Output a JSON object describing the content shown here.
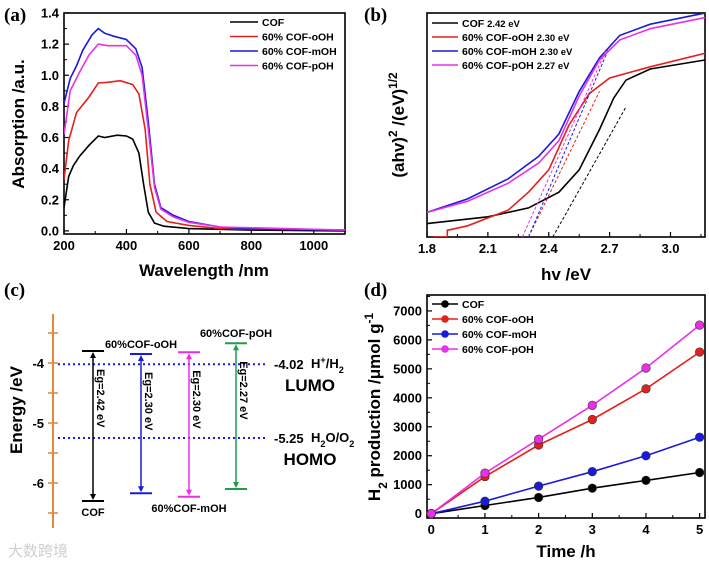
{
  "watermark": "大数跨境",
  "chart_data": [
    {
      "panel": "(a)",
      "type": "line",
      "xlabel": "Wavelength /nm",
      "ylabel": "Absorption /a.u.",
      "xlim": [
        200,
        1100
      ],
      "ylim": [
        -0.02,
        1.4
      ],
      "xticks": [
        "200",
        "400",
        "600",
        "800",
        "1000"
      ],
      "yticks": [
        "0.0",
        "0.2",
        "0.4",
        "0.6",
        "0.8",
        "1.0",
        "1.2",
        "1.4"
      ],
      "legend_position": "top-right",
      "series": [
        {
          "name": "COF",
          "color": "#000000",
          "points": [
            [
              200,
              0.15
            ],
            [
              215,
              0.35
            ],
            [
              230,
              0.42
            ],
            [
              250,
              0.48
            ],
            [
              280,
              0.55
            ],
            [
              310,
              0.61
            ],
            [
              330,
              0.6
            ],
            [
              370,
              0.615
            ],
            [
              400,
              0.61
            ],
            [
              420,
              0.59
            ],
            [
              440,
              0.5
            ],
            [
              455,
              0.3
            ],
            [
              470,
              0.12
            ],
            [
              490,
              0.05
            ],
            [
              520,
              0.03
            ],
            [
              600,
              0.015
            ],
            [
              800,
              0.005
            ],
            [
              1100,
              0.0
            ]
          ]
        },
        {
          "name": "60% COF-oOH",
          "color": "#e3201c",
          "points": [
            [
              200,
              0.33
            ],
            [
              215,
              0.58
            ],
            [
              240,
              0.76
            ],
            [
              280,
              0.86
            ],
            [
              310,
              0.95
            ],
            [
              340,
              0.955
            ],
            [
              380,
              0.965
            ],
            [
              420,
              0.94
            ],
            [
              440,
              0.88
            ],
            [
              460,
              0.65
            ],
            [
              475,
              0.3
            ],
            [
              495,
              0.12
            ],
            [
              530,
              0.06
            ],
            [
              600,
              0.035
            ],
            [
              700,
              0.015
            ],
            [
              1100,
              0.005
            ]
          ]
        },
        {
          "name": "60% COF-mOH",
          "color": "#1a1adb",
          "points": [
            [
              200,
              0.82
            ],
            [
              220,
              0.98
            ],
            [
              240,
              1.06
            ],
            [
              260,
              1.16
            ],
            [
              290,
              1.26
            ],
            [
              310,
              1.3
            ],
            [
              330,
              1.27
            ],
            [
              360,
              1.25
            ],
            [
              400,
              1.23
            ],
            [
              430,
              1.17
            ],
            [
              450,
              1.05
            ],
            [
              470,
              0.7
            ],
            [
              490,
              0.3
            ],
            [
              510,
              0.15
            ],
            [
              550,
              0.1
            ],
            [
              600,
              0.06
            ],
            [
              700,
              0.025
            ],
            [
              800,
              0.012
            ],
            [
              1100,
              0.005
            ]
          ]
        },
        {
          "name": "60% COF-pOH",
          "color": "#e830e8",
          "points": [
            [
              200,
              0.62
            ],
            [
              220,
              0.9
            ],
            [
              250,
              1.02
            ],
            [
              280,
              1.13
            ],
            [
              310,
              1.2
            ],
            [
              340,
              1.19
            ],
            [
              400,
              1.19
            ],
            [
              430,
              1.13
            ],
            [
              450,
              1.0
            ],
            [
              470,
              0.65
            ],
            [
              490,
              0.28
            ],
            [
              510,
              0.14
            ],
            [
              550,
              0.09
            ],
            [
              600,
              0.055
            ],
            [
              700,
              0.025
            ],
            [
              1100,
              0.005
            ]
          ]
        }
      ]
    },
    {
      "panel": "(b)",
      "type": "line",
      "xlabel": "hv /eV",
      "ylabel_parts": [
        "(ahv)",
        "2",
        " /(eV)",
        "1/2"
      ],
      "xlim": [
        1.8,
        3.17
      ],
      "ylim": [
        0,
        100
      ],
      "xticks": [
        "1.8",
        "2.1",
        "2.4",
        "2.7",
        "3.0"
      ],
      "legend_position": "top-left",
      "series": [
        {
          "name": "COF",
          "eg": "2.42 eV",
          "color": "#000000",
          "points": [
            [
              1.8,
              6
            ],
            [
              2.1,
              9
            ],
            [
              2.3,
              13
            ],
            [
              2.45,
              20
            ],
            [
              2.55,
              30
            ],
            [
              2.65,
              48
            ],
            [
              2.72,
              62
            ],
            [
              2.78,
              70
            ],
            [
              2.9,
              75
            ],
            [
              3.17,
              79
            ]
          ],
          "tangent": [
            [
              2.42,
              0
            ],
            [
              2.78,
              58
            ]
          ]
        },
        {
          "name": "60% COF-oOH",
          "eg": "2.30 eV",
          "color": "#e3201c",
          "points": [
            [
              1.83,
              0
            ],
            [
              1.9,
              0
            ],
            [
              1.9,
              3
            ],
            [
              2.0,
              5
            ],
            [
              2.2,
              12
            ],
            [
              2.3,
              20
            ],
            [
              2.4,
              30
            ],
            [
              2.5,
              50
            ],
            [
              2.6,
              64
            ],
            [
              2.7,
              71
            ],
            [
              2.9,
              76
            ],
            [
              3.17,
              82
            ]
          ],
          "tangent": [
            [
              2.3,
              0
            ],
            [
              2.65,
              65
            ]
          ]
        },
        {
          "name": "60% COF-mOH",
          "eg": "2.30 eV",
          "color": "#1a1adb",
          "points": [
            [
              1.8,
              11
            ],
            [
              2.0,
              17
            ],
            [
              2.2,
              26
            ],
            [
              2.35,
              36
            ],
            [
              2.45,
              46
            ],
            [
              2.55,
              65
            ],
            [
              2.65,
              80
            ],
            [
              2.75,
              90
            ],
            [
              2.9,
              95
            ],
            [
              3.17,
              100
            ]
          ],
          "tangent": [
            [
              2.3,
              0
            ],
            [
              2.7,
              85
            ]
          ]
        },
        {
          "name": "60% COF-pOH",
          "eg": "2.27 eV",
          "color": "#e830e8",
          "points": [
            [
              1.8,
              11
            ],
            [
              2.0,
              16
            ],
            [
              2.2,
              24
            ],
            [
              2.35,
              33
            ],
            [
              2.45,
              43
            ],
            [
              2.55,
              63
            ],
            [
              2.65,
              79
            ],
            [
              2.75,
              88
            ],
            [
              2.9,
              93
            ],
            [
              3.17,
              98
            ]
          ],
          "tangent": [
            [
              2.27,
              0
            ],
            [
              2.68,
              83
            ]
          ]
        }
      ]
    },
    {
      "panel": "(c)",
      "type": "diagram",
      "ylabel": "Energy /eV",
      "ylim": [
        -3.3,
        -6.7
      ],
      "yticks": [
        "-4",
        "-5",
        "-6"
      ],
      "axis_color": "#e08a3c",
      "reference_levels": [
        {
          "value": -4.02,
          "value_label": "-4.02",
          "couple_parts": [
            "H",
            "+",
            "/H",
            "2",
            ""
          ],
          "band": "LUMO"
        },
        {
          "value": -5.25,
          "value_label": "-5.25",
          "couple_parts": [
            "H",
            "2",
            "O/O",
            "2",
            ""
          ],
          "band": "HOMO"
        }
      ],
      "band_color": "#e3201c",
      "reference_color": "#1a1adb",
      "materials": [
        {
          "name": "COF",
          "lumo": -3.8,
          "homo": -6.3,
          "eg": "Eg=2.42 eV",
          "color": "#000000",
          "name_pos": "bottom"
        },
        {
          "name": "60%COF-oOH",
          "lumo": -3.85,
          "homo": -6.17,
          "eg": "Eg=2.30 eV",
          "color": "#1a1adb",
          "name_pos": "top"
        },
        {
          "name": "60%COF-mOH",
          "lumo": -3.82,
          "homo": -6.23,
          "eg": "Eg=2.30 eV",
          "color": "#e830e8",
          "name_pos": "bottom"
        },
        {
          "name": "60%COF-pOH",
          "lumo": -3.67,
          "homo": -6.1,
          "eg": "Eg=2.27 eV",
          "color": "#1e9e4a",
          "name_pos": "top"
        }
      ]
    },
    {
      "panel": "(d)",
      "type": "line",
      "xlabel": "Time /h",
      "ylabel_parts": [
        "H",
        "2",
        " production /μmol g",
        "-1"
      ],
      "xlim": [
        -0.08,
        5.1
      ],
      "ylim": [
        -150,
        7550
      ],
      "xticks": [
        "0",
        "1",
        "2",
        "3",
        "4",
        "5"
      ],
      "yticks": [
        "0",
        "1000",
        "2000",
        "3000",
        "4000",
        "5000",
        "6000",
        "7000"
      ],
      "legend_position": "top-left",
      "x": [
        0,
        1,
        2,
        3,
        4,
        5
      ],
      "series": [
        {
          "name": "COF",
          "color": "#000000",
          "values": [
            0,
            280,
            560,
            880,
            1150,
            1420
          ]
        },
        {
          "name": "60% COF-oOH",
          "color": "#e3201c",
          "values": [
            0,
            1280,
            2370,
            3250,
            4310,
            5580
          ]
        },
        {
          "name": "60% COF-mOH",
          "color": "#1a1adb",
          "values": [
            0,
            430,
            950,
            1450,
            2000,
            2640
          ]
        },
        {
          "name": "60% COF-pOH",
          "color": "#e830e8",
          "values": [
            0,
            1400,
            2570,
            3740,
            5030,
            6510
          ]
        }
      ]
    }
  ]
}
